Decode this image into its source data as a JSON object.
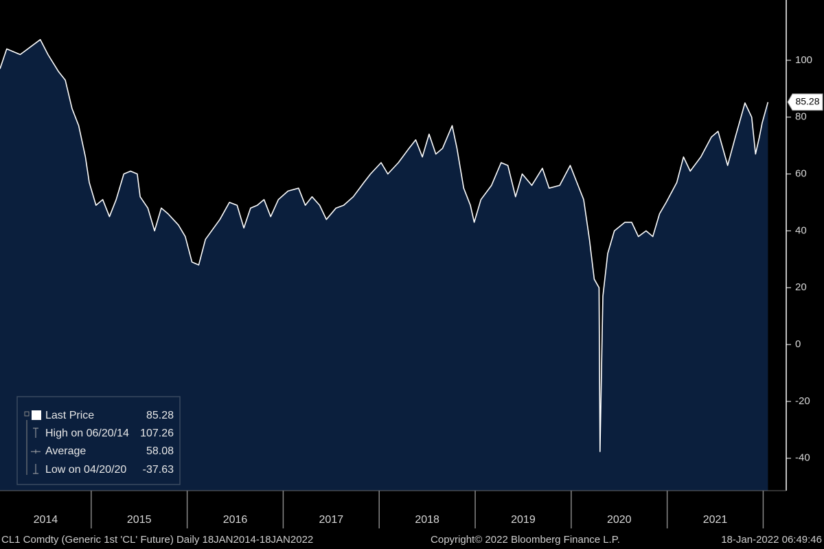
{
  "chart_data": {
    "type": "area",
    "x": [
      2014.05,
      2014.12,
      2014.26,
      2014.47,
      2014.55,
      2014.66,
      2014.73,
      2014.8,
      2014.87,
      2014.94,
      2014.98,
      2015.05,
      2015.12,
      2015.19,
      2015.26,
      2015.34,
      2015.41,
      2015.48,
      2015.51,
      2015.59,
      2015.66,
      2015.73,
      2015.8,
      2015.91,
      2015.98,
      2016.05,
      2016.12,
      2016.19,
      2016.34,
      2016.44,
      2016.52,
      2016.59,
      2016.66,
      2016.73,
      2016.8,
      2016.87,
      2016.95,
      2017.05,
      2017.16,
      2017.23,
      2017.3,
      2017.38,
      2017.45,
      2017.55,
      2017.63,
      2017.73,
      2017.84,
      2017.91,
      2018.02,
      2018.09,
      2018.2,
      2018.31,
      2018.38,
      2018.45,
      2018.52,
      2018.59,
      2018.66,
      2018.76,
      2018.81,
      2018.88,
      2018.95,
      2018.99,
      2019.06,
      2019.17,
      2019.27,
      2019.34,
      2019.42,
      2019.49,
      2019.59,
      2019.7,
      2019.77,
      2019.88,
      2019.99,
      2020.06,
      2020.13,
      2020.19,
      2020.24,
      2020.29,
      2020.3,
      2020.33,
      2020.38,
      2020.45,
      2020.56,
      2020.63,
      2020.7,
      2020.78,
      2020.85,
      2020.92,
      2020.99,
      2021.1,
      2021.17,
      2021.24,
      2021.35,
      2021.46,
      2021.53,
      2021.63,
      2021.71,
      2021.81,
      2021.88,
      2021.92,
      2021.96,
      2021.99,
      2022.05
    ],
    "values": [
      97,
      104,
      102,
      107.26,
      102,
      96,
      93,
      83,
      77,
      66,
      57,
      49,
      51,
      45,
      51,
      60,
      61,
      60,
      52,
      48,
      40,
      48,
      46,
      42,
      38,
      29,
      28,
      37,
      44,
      50,
      49,
      41,
      48,
      49,
      51,
      45,
      51,
      54,
      55,
      49,
      52,
      49,
      44,
      48,
      49,
      52,
      57,
      60,
      64,
      60,
      64,
      69,
      72,
      66,
      74,
      67,
      69,
      77,
      69,
      55,
      49,
      43,
      51,
      56,
      64,
      63,
      52,
      60,
      56,
      62,
      55,
      56,
      63,
      57,
      51,
      37,
      23,
      20,
      -37.63,
      17,
      32,
      40,
      43,
      43,
      38,
      40,
      38,
      46,
      50,
      57,
      66,
      61,
      66,
      73,
      75,
      63,
      73,
      85,
      80,
      67,
      73,
      78,
      85.28
    ],
    "color": "#ffffff",
    "fill": "#0b1f3d",
    "xlim": [
      2014.05,
      2022.24
    ],
    "ylim": [
      -51.4,
      121.2
    ],
    "xticks": [
      2015,
      2016,
      2017,
      2018,
      2019,
      2020,
      2021,
      2022
    ],
    "x_period_labels": [
      "2014",
      "2015",
      "2016",
      "2017",
      "2018",
      "2019",
      "2020",
      "2021"
    ],
    "yticks": [
      -40,
      -20,
      0,
      20,
      40,
      60,
      80,
      100
    ],
    "legend": [
      {
        "label": "Last Price",
        "value": 85.28
      },
      {
        "label": "High on 06/20/14",
        "value": 107.26
      },
      {
        "label": "Average",
        "value": 58.08
      },
      {
        "label": "Low on 04/20/20",
        "value": -37.63
      }
    ],
    "footer_left": "CL1 Comdty (Generic 1st 'CL' Future)  Daily 18JAN2014-18JAN2022",
    "footer_center": "Copyright© 2022 Bloomberg Finance L.P.",
    "footer_right": "18-Jan-2022 06:49:46"
  }
}
